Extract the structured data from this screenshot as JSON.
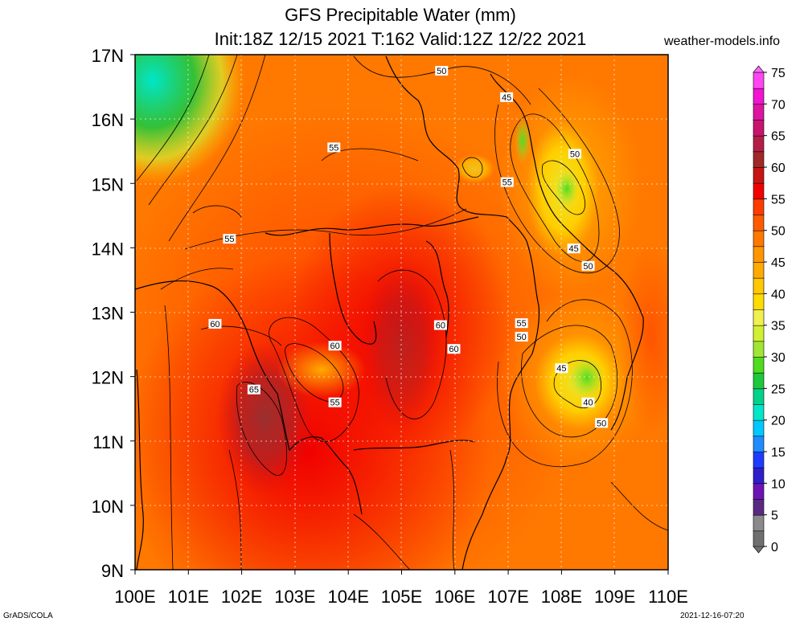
{
  "header": {
    "title": "GFS Precipitable Water (mm)",
    "subtitle": "Init:18Z 12/15 2021 T:162 Valid:12Z 12/22 2021",
    "site": "weather-models.info"
  },
  "footer": {
    "credit": "GrADS/COLA",
    "timestamp": "2021-12-16-07:20"
  },
  "map": {
    "lon_range": [
      100,
      110
    ],
    "lat_range": [
      9,
      17
    ],
    "lat_labels": [
      "9N",
      "10N",
      "11N",
      "12N",
      "13N",
      "14N",
      "15N",
      "16N",
      "17N"
    ],
    "lon_labels": [
      "100E",
      "101E",
      "102E",
      "103E",
      "104E",
      "105E",
      "106E",
      "107E",
      "108E",
      "109E",
      "110E"
    ],
    "gridlines": true,
    "contour_labels": [
      {
        "text": "50",
        "lon": 105.75,
        "lat": 16.75
      },
      {
        "text": "45",
        "lon": 106.97,
        "lat": 16.34
      },
      {
        "text": "55",
        "lon": 103.73,
        "lat": 15.56
      },
      {
        "text": "50",
        "lon": 108.25,
        "lat": 15.46
      },
      {
        "text": "55",
        "lon": 106.98,
        "lat": 15.02
      },
      {
        "text": "55",
        "lon": 101.77,
        "lat": 14.14
      },
      {
        "text": "45",
        "lon": 108.23,
        "lat": 13.99
      },
      {
        "text": "50",
        "lon": 108.5,
        "lat": 13.72
      },
      {
        "text": "60",
        "lon": 101.5,
        "lat": 12.82
      },
      {
        "text": "55",
        "lon": 107.25,
        "lat": 12.83
      },
      {
        "text": "60",
        "lon": 105.73,
        "lat": 12.8
      },
      {
        "text": "50",
        "lon": 107.25,
        "lat": 12.62
      },
      {
        "text": "60",
        "lon": 103.75,
        "lat": 12.48
      },
      {
        "text": "60",
        "lon": 105.98,
        "lat": 12.43
      },
      {
        "text": "45",
        "lon": 108,
        "lat": 12.13
      },
      {
        "text": "65",
        "lon": 102.23,
        "lat": 11.8
      },
      {
        "text": "55",
        "lon": 103.75,
        "lat": 11.6
      },
      {
        "text": "40",
        "lon": 108.5,
        "lat": 11.6
      },
      {
        "text": "50",
        "lon": 108.75,
        "lat": 11.28
      }
    ]
  },
  "colorbar": {
    "levels": [
      "0",
      "5",
      "10",
      "15",
      "20",
      "25",
      "30",
      "35",
      "40",
      "45",
      "50",
      "55",
      "60",
      "65",
      "70",
      "75"
    ],
    "colors": [
      "#707070",
      "#8a8a8a",
      "#5a2a82",
      "#6e14b4",
      "#2f1ecb",
      "#1e3cff",
      "#1e8cff",
      "#00c8ff",
      "#00e6c8",
      "#00d28c",
      "#1ec83c",
      "#50dc1e",
      "#a0e632",
      "#d2f032",
      "#f0f050",
      "#ffdc00",
      "#ffc800",
      "#ffaa00",
      "#ff9600",
      "#ff7800",
      "#ff5a00",
      "#ff3c00",
      "#f00000",
      "#c81414",
      "#a02828",
      "#b41e46",
      "#c8146e",
      "#dc14a0",
      "#f014d2",
      "#ff46f0"
    ]
  }
}
